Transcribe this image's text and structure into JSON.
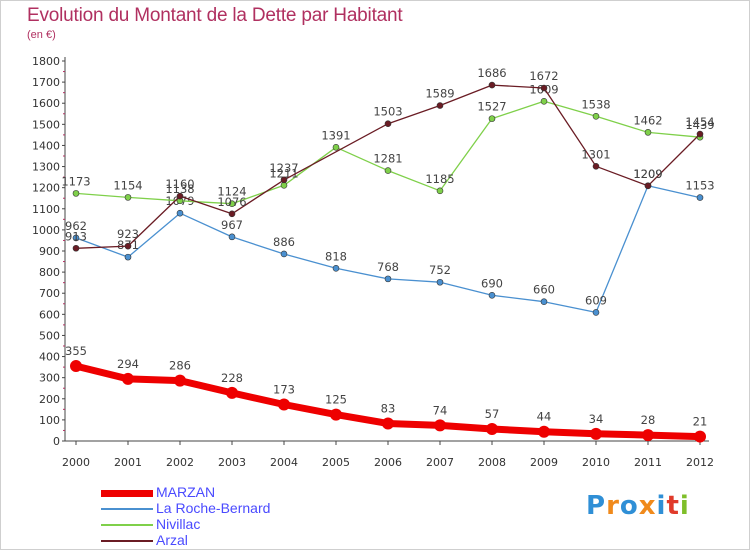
{
  "header": {
    "title": "Evolution du Montant de la Dette par Habitant",
    "subtitle": "(en €)"
  },
  "logo": {
    "text": "Proxiti",
    "colors": [
      "#2f8fd6",
      "#f08a1c",
      "#2f8fd6",
      "#f08a1c",
      "#2f8fd6",
      "#e03a2a",
      "#7fbf2a"
    ]
  },
  "chart_data": {
    "type": "line",
    "title": "Evolution du Montant de la Dette par Habitant",
    "subtitle": "(en €)",
    "xlabel": "",
    "ylabel": "",
    "x": [
      "2000",
      "2001",
      "2002",
      "2003",
      "2004",
      "2005",
      "2006",
      "2007",
      "2008",
      "2009",
      "2010",
      "2011",
      "2012"
    ],
    "ylim": [
      0,
      1800
    ],
    "yticks": [
      0,
      100,
      200,
      300,
      400,
      500,
      600,
      700,
      800,
      900,
      1000,
      1100,
      1200,
      1300,
      1400,
      1500,
      1600,
      1700,
      1800
    ],
    "grid": false,
    "legend_position": "bottom-left",
    "series": [
      {
        "name": "MARZAN",
        "color": "#ee0000",
        "values": [
          355,
          294,
          286,
          228,
          173,
          125,
          83,
          74,
          57,
          44,
          34,
          28,
          21
        ]
      },
      {
        "name": "La Roche-Bernard",
        "color": "#4a90d0",
        "values": [
          962,
          871,
          1079,
          967,
          886,
          818,
          768,
          752,
          690,
          660,
          609,
          1209,
          1153
        ]
      },
      {
        "name": "Nivillac",
        "color": "#7fd04a",
        "values": [
          1173,
          1154,
          1138,
          1124,
          1211,
          1391,
          1281,
          1185,
          1527,
          1609,
          1538,
          1462,
          1439
        ]
      },
      {
        "name": "Arzal",
        "color": "#6a1c24",
        "values": [
          913,
          923,
          1160,
          1076,
          1237,
          null,
          1503,
          1589,
          1686,
          1672,
          1301,
          1209,
          1454
        ]
      }
    ]
  }
}
